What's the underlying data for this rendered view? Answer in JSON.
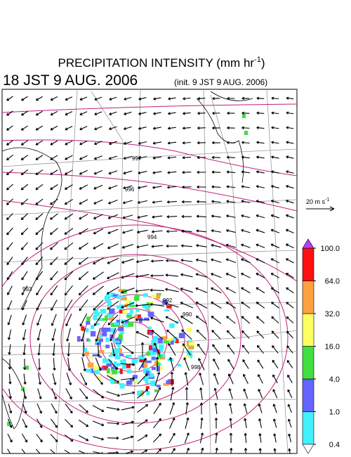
{
  "header": {
    "title": "PRECIPITATION INTENSITY (mm hr",
    "title_exponent": "-1",
    "title_end": ")",
    "valid_time": "18 JST 9 AUG. 2006",
    "init_time": "(init. 9 JST 9 AUG. 2006)"
  },
  "vector_scale": {
    "label": "20 m s",
    "exponent": "-1"
  },
  "colorbar": {
    "levels": [
      {
        "value": 0.4,
        "label": "0.4"
      },
      {
        "value": 1,
        "label": "1.0"
      },
      {
        "value": 4,
        "label": "4.0"
      },
      {
        "value": 16,
        "label": "16.0"
      },
      {
        "value": 32,
        "label": "32.0"
      },
      {
        "value": 64,
        "label": "64.0"
      },
      {
        "value": 100,
        "label": "100.0"
      }
    ],
    "colors": [
      "#40f0ff",
      "#6464ff",
      "#40e040",
      "#ffff60",
      "#ffa040",
      "#ff1010"
    ],
    "under_color": "#ffffff",
    "over_color": "#b040ff"
  },
  "contour_labels": [
    "997",
    "996",
    "994",
    "993",
    "992",
    "990",
    "998"
  ]
}
